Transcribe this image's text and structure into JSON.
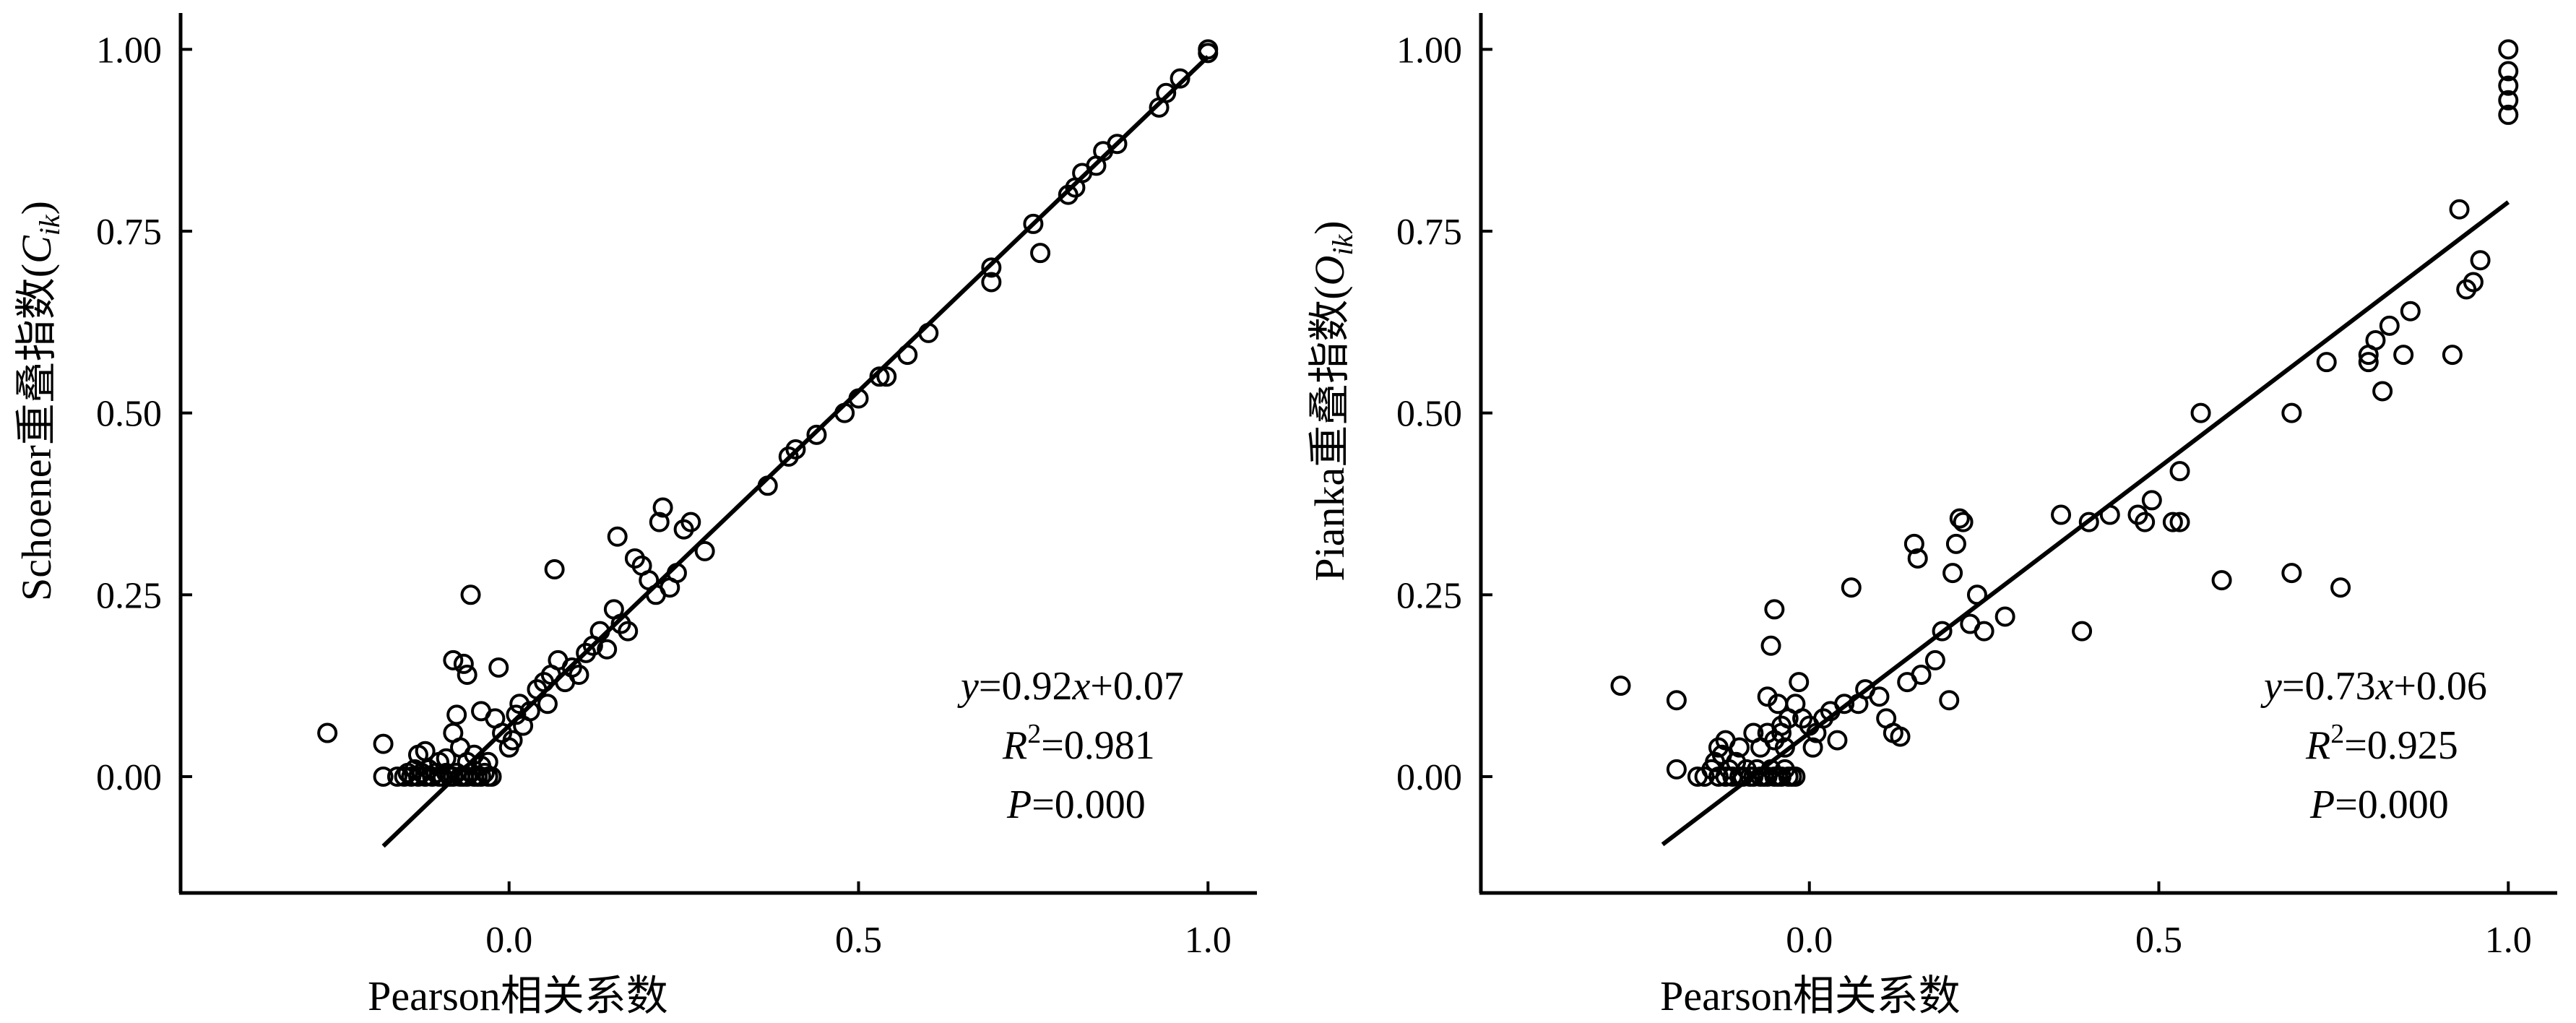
{
  "chart_data": [
    {
      "type": "scatter",
      "title": "",
      "xlabel": "Pearson相关系数",
      "ylabel_main": "Schoener重叠指数(",
      "ylabel_var": "C",
      "ylabel_sub": "ik",
      "ylabel_close": ")",
      "xlim": [
        -0.47,
        1.07
      ],
      "ylim": [
        -0.16,
        1.05
      ],
      "xticks": [
        0.0,
        0.5,
        1.0
      ],
      "xtick_labels": [
        "0.0",
        "0.5",
        "1.0"
      ],
      "yticks": [
        0.0,
        0.25,
        0.5,
        0.75,
        1.0
      ],
      "ytick_labels": [
        "0.00",
        "0.25",
        "0.50",
        "0.75",
        "1.00"
      ],
      "grid": false,
      "fit": {
        "slope": 0.92,
        "intercept": 0.07,
        "x_range": [
          -0.18,
          1.0
        ]
      },
      "annotation": {
        "eq_y": "y",
        "eq_mid": "=0.92",
        "eq_x": "x",
        "eq_end": "+0.07",
        "r2_r": "R",
        "r2_sup": "2",
        "r2_val": "=0.981",
        "p_p": "P",
        "p_val": "=0.000"
      },
      "points": [
        [
          -0.26,
          0.06
        ],
        [
          -0.18,
          0.0
        ],
        [
          -0.18,
          0.045
        ],
        [
          -0.16,
          0.0
        ],
        [
          -0.15,
          0.0
        ],
        [
          -0.145,
          0.005
        ],
        [
          -0.14,
          0.0
        ],
        [
          -0.135,
          0.01
        ],
        [
          -0.13,
          0.0
        ],
        [
          -0.125,
          0.005
        ],
        [
          -0.12,
          0.0
        ],
        [
          -0.115,
          0.01
        ],
        [
          -0.11,
          0.0
        ],
        [
          -0.105,
          0.005
        ],
        [
          -0.1,
          0.0
        ],
        [
          -0.095,
          0.0
        ],
        [
          -0.09,
          0.005
        ],
        [
          -0.085,
          0.0
        ],
        [
          -0.08,
          0.0
        ],
        [
          -0.075,
          0.005
        ],
        [
          -0.07,
          0.0
        ],
        [
          -0.065,
          0.0
        ],
        [
          -0.06,
          0.0
        ],
        [
          -0.055,
          0.005
        ],
        [
          -0.05,
          0.0
        ],
        [
          -0.045,
          0.0
        ],
        [
          -0.04,
          0.0
        ],
        [
          -0.035,
          0.005
        ],
        [
          -0.03,
          0.0
        ],
        [
          -0.025,
          0.0
        ],
        [
          -0.13,
          0.03
        ],
        [
          -0.12,
          0.035
        ],
        [
          -0.1,
          0.02
        ],
        [
          -0.09,
          0.025
        ],
        [
          -0.08,
          0.06
        ],
        [
          -0.07,
          0.04
        ],
        [
          -0.06,
          0.02
        ],
        [
          -0.05,
          0.03
        ],
        [
          -0.04,
          0.015
        ],
        [
          -0.03,
          0.02
        ],
        [
          -0.075,
          0.085
        ],
        [
          -0.065,
          0.155
        ],
        [
          -0.08,
          0.16
        ],
        [
          -0.06,
          0.14
        ],
        [
          -0.04,
          0.09
        ],
        [
          -0.015,
          0.15
        ],
        [
          -0.055,
          0.25
        ],
        [
          -0.02,
          0.08
        ],
        [
          -0.01,
          0.06
        ],
        [
          0.0,
          0.04
        ],
        [
          0.005,
          0.05
        ],
        [
          0.01,
          0.085
        ],
        [
          0.015,
          0.1
        ],
        [
          0.02,
          0.07
        ],
        [
          0.03,
          0.09
        ],
        [
          0.04,
          0.12
        ],
        [
          0.05,
          0.13
        ],
        [
          0.055,
          0.1
        ],
        [
          0.06,
          0.14
        ],
        [
          0.065,
          0.285
        ],
        [
          0.07,
          0.16
        ],
        [
          0.08,
          0.13
        ],
        [
          0.09,
          0.15
        ],
        [
          0.1,
          0.14
        ],
        [
          0.11,
          0.17
        ],
        [
          0.12,
          0.18
        ],
        [
          0.13,
          0.2
        ],
        [
          0.14,
          0.175
        ],
        [
          0.15,
          0.23
        ],
        [
          0.155,
          0.33
        ],
        [
          0.16,
          0.21
        ],
        [
          0.17,
          0.2
        ],
        [
          0.18,
          0.3
        ],
        [
          0.19,
          0.29
        ],
        [
          0.2,
          0.27
        ],
        [
          0.21,
          0.25
        ],
        [
          0.215,
          0.35
        ],
        [
          0.22,
          0.37
        ],
        [
          0.23,
          0.26
        ],
        [
          0.24,
          0.28
        ],
        [
          0.25,
          0.34
        ],
        [
          0.26,
          0.35
        ],
        [
          0.28,
          0.31
        ],
        [
          0.37,
          0.4
        ],
        [
          0.4,
          0.44
        ],
        [
          0.41,
          0.45
        ],
        [
          0.44,
          0.47
        ],
        [
          0.48,
          0.5
        ],
        [
          0.5,
          0.52
        ],
        [
          0.53,
          0.55
        ],
        [
          0.54,
          0.55
        ],
        [
          0.57,
          0.58
        ],
        [
          0.6,
          0.61
        ],
        [
          0.69,
          0.68
        ],
        [
          0.69,
          0.7
        ],
        [
          0.75,
          0.76
        ],
        [
          0.76,
          0.72
        ],
        [
          0.8,
          0.8
        ],
        [
          0.81,
          0.81
        ],
        [
          0.82,
          0.83
        ],
        [
          0.84,
          0.84
        ],
        [
          0.85,
          0.86
        ],
        [
          0.87,
          0.87
        ],
        [
          0.93,
          0.92
        ],
        [
          0.94,
          0.94
        ],
        [
          0.96,
          0.96
        ],
        [
          1.0,
          1.0
        ],
        [
          1.0,
          0.995
        ]
      ]
    },
    {
      "type": "scatter",
      "title": "",
      "xlabel": "Pearson相关系数",
      "ylabel_main": "Pianka重叠指数(",
      "ylabel_var": "O",
      "ylabel_sub": "ik",
      "ylabel_close": ")",
      "xlim": [
        -0.47,
        1.07
      ],
      "ylim": [
        -0.16,
        1.05
      ],
      "xticks": [
        0.0,
        0.5,
        1.0
      ],
      "xtick_labels": [
        "0.0",
        "0.5",
        "1.0"
      ],
      "yticks": [
        0.0,
        0.25,
        0.5,
        0.75,
        1.0
      ],
      "ytick_labels": [
        "0.00",
        "0.25",
        "0.50",
        "0.75",
        "1.00"
      ],
      "grid": false,
      "fit": {
        "slope": 0.73,
        "intercept": 0.06,
        "x_range": [
          -0.21,
          1.0
        ]
      },
      "annotation": {
        "eq_y": "y",
        "eq_mid": "=0.73",
        "eq_x": "x",
        "eq_end": "+0.06",
        "r2_r": "R",
        "r2_sup": "2",
        "r2_val": "=0.925",
        "p_p": "P",
        "p_val": "=0.000"
      },
      "points": [
        [
          -0.27,
          0.125
        ],
        [
          -0.19,
          0.105
        ],
        [
          -0.19,
          0.01
        ],
        [
          -0.16,
          0.0
        ],
        [
          -0.15,
          0.0
        ],
        [
          -0.14,
          0.01
        ],
        [
          -0.135,
          0.02
        ],
        [
          -0.13,
          0.0
        ],
        [
          -0.125,
          0.03
        ],
        [
          -0.12,
          0.0
        ],
        [
          -0.115,
          0.01
        ],
        [
          -0.11,
          0.0
        ],
        [
          -0.105,
          0.02
        ],
        [
          -0.1,
          0.0
        ],
        [
          -0.095,
          0.0
        ],
        [
          -0.09,
          0.01
        ],
        [
          -0.085,
          0.0
        ],
        [
          -0.08,
          0.0
        ],
        [
          -0.075,
          0.01
        ],
        [
          -0.07,
          0.0
        ],
        [
          -0.065,
          0.0
        ],
        [
          -0.06,
          0.0
        ],
        [
          -0.055,
          0.01
        ],
        [
          -0.05,
          0.0
        ],
        [
          -0.045,
          0.0
        ],
        [
          -0.04,
          0.0
        ],
        [
          -0.035,
          0.01
        ],
        [
          -0.03,
          0.0
        ],
        [
          -0.025,
          0.0
        ],
        [
          -0.02,
          0.0
        ],
        [
          -0.13,
          0.04
        ],
        [
          -0.12,
          0.05
        ],
        [
          -0.1,
          0.04
        ],
        [
          -0.08,
          0.06
        ],
        [
          -0.07,
          0.04
        ],
        [
          -0.06,
          0.06
        ],
        [
          -0.05,
          0.05
        ],
        [
          -0.04,
          0.06
        ],
        [
          -0.035,
          0.04
        ],
        [
          -0.03,
          0.08
        ],
        [
          -0.06,
          0.11
        ],
        [
          -0.055,
          0.18
        ],
        [
          -0.05,
          0.23
        ],
        [
          -0.045,
          0.1
        ],
        [
          -0.04,
          0.07
        ],
        [
          -0.02,
          0.1
        ],
        [
          -0.015,
          0.13
        ],
        [
          -0.01,
          0.08
        ],
        [
          0.0,
          0.07
        ],
        [
          0.005,
          0.04
        ],
        [
          0.01,
          0.06
        ],
        [
          0.02,
          0.08
        ],
        [
          0.03,
          0.09
        ],
        [
          0.04,
          0.05
        ],
        [
          0.05,
          0.1
        ],
        [
          0.06,
          0.26
        ],
        [
          0.07,
          0.1
        ],
        [
          0.08,
          0.12
        ],
        [
          0.1,
          0.11
        ],
        [
          0.11,
          0.08
        ],
        [
          0.12,
          0.06
        ],
        [
          0.13,
          0.055
        ],
        [
          0.14,
          0.13
        ],
        [
          0.15,
          0.32
        ],
        [
          0.155,
          0.3
        ],
        [
          0.16,
          0.14
        ],
        [
          0.18,
          0.16
        ],
        [
          0.19,
          0.2
        ],
        [
          0.2,
          0.105
        ],
        [
          0.205,
          0.28
        ],
        [
          0.21,
          0.32
        ],
        [
          0.215,
          0.355
        ],
        [
          0.22,
          0.35
        ],
        [
          0.23,
          0.21
        ],
        [
          0.24,
          0.25
        ],
        [
          0.25,
          0.2
        ],
        [
          0.28,
          0.22
        ],
        [
          0.36,
          0.36
        ],
        [
          0.39,
          0.2
        ],
        [
          0.4,
          0.35
        ],
        [
          0.43,
          0.36
        ],
        [
          0.47,
          0.36
        ],
        [
          0.48,
          0.35
        ],
        [
          0.49,
          0.38
        ],
        [
          0.52,
          0.35
        ],
        [
          0.53,
          0.35
        ],
        [
          0.53,
          0.42
        ],
        [
          0.56,
          0.5
        ],
        [
          0.59,
          0.27
        ],
        [
          0.69,
          0.5
        ],
        [
          0.69,
          0.28
        ],
        [
          0.74,
          0.57
        ],
        [
          0.76,
          0.26
        ],
        [
          0.8,
          0.57
        ],
        [
          0.8,
          0.58
        ],
        [
          0.81,
          0.6
        ],
        [
          0.82,
          0.53
        ],
        [
          0.83,
          0.62
        ],
        [
          0.85,
          0.58
        ],
        [
          0.86,
          0.64
        ],
        [
          0.92,
          0.58
        ],
        [
          0.93,
          0.78
        ],
        [
          0.94,
          0.67
        ],
        [
          0.95,
          0.68
        ],
        [
          0.96,
          0.71
        ],
        [
          1.0,
          1.0
        ],
        [
          1.0,
          0.97
        ],
        [
          1.0,
          0.95
        ],
        [
          1.0,
          0.93
        ],
        [
          1.0,
          0.91
        ]
      ]
    }
  ]
}
